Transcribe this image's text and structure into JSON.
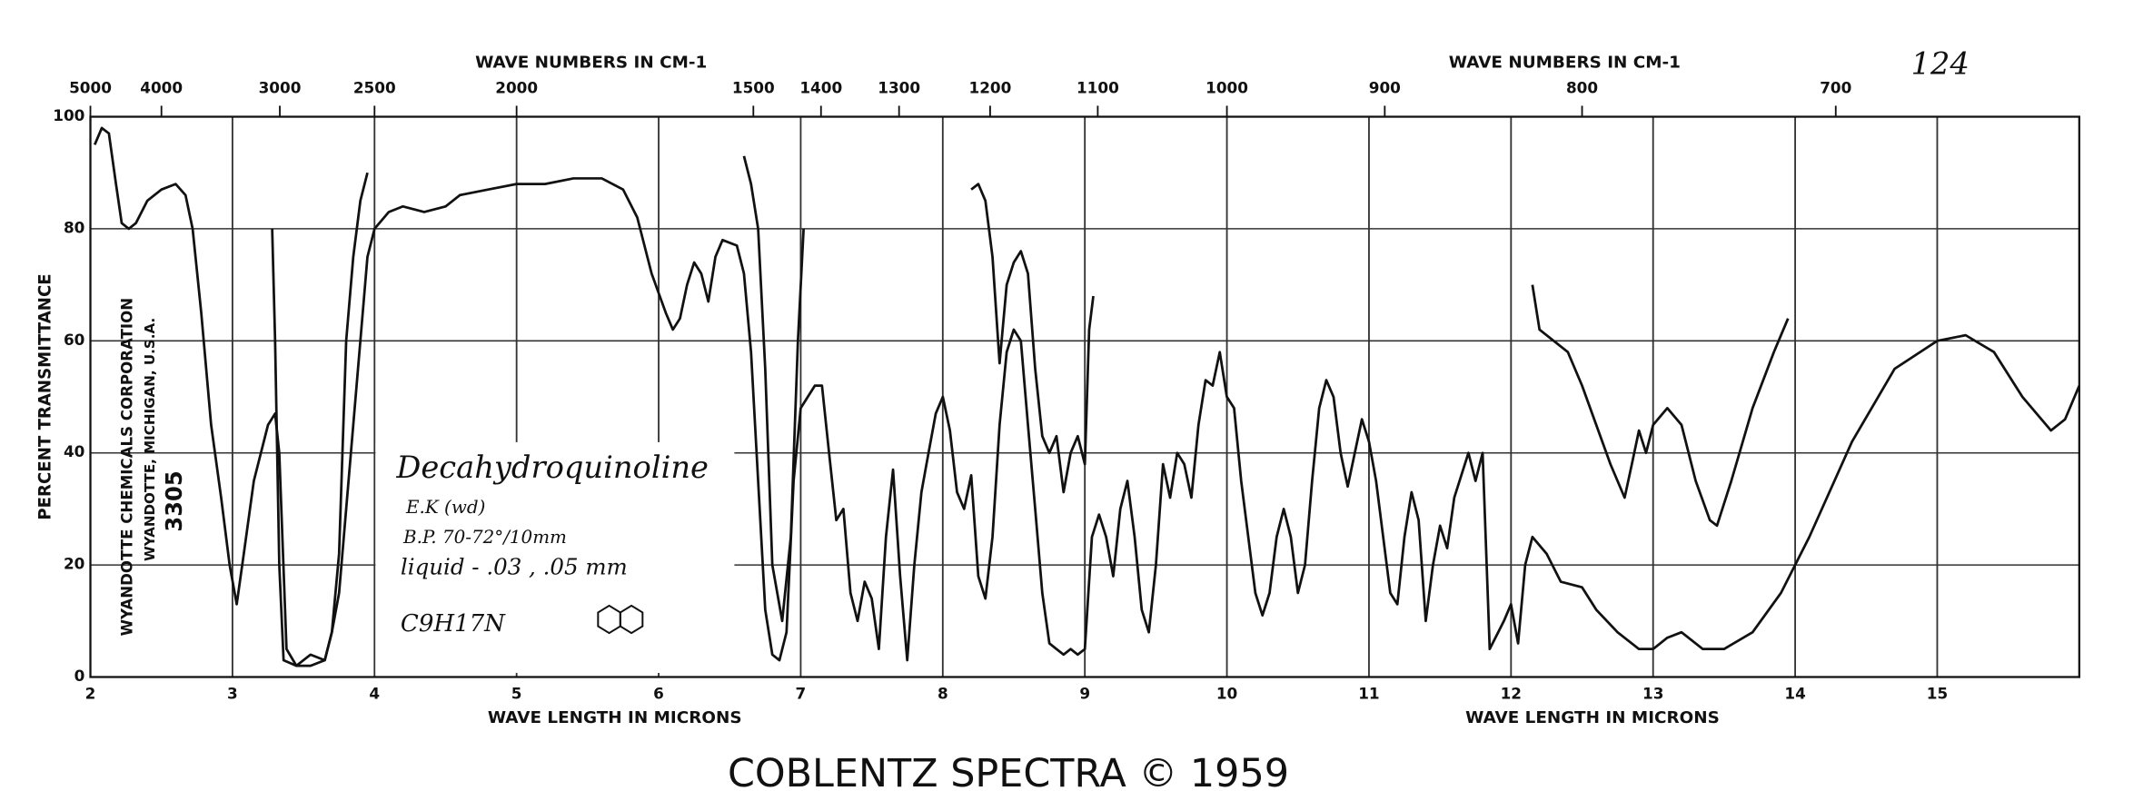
{
  "chart_data": {
    "type": "line",
    "page_number": "124",
    "x2label": "WAVE NUMBERS IN CM-1",
    "xlabel": "WAVE LENGTH IN MICRONS",
    "ylabel": "PERCENT TRANSMITTANCE",
    "xlim": [
      2,
      16
    ],
    "xticks": [
      2,
      3,
      4,
      5,
      6,
      7,
      8,
      9,
      10,
      11,
      12,
      13,
      14,
      15
    ],
    "x2ticks": [
      5000,
      4000,
      3000,
      2500,
      2000,
      1500,
      1400,
      1300,
      1200,
      1100,
      1000,
      900,
      800,
      700
    ],
    "ylim": [
      0,
      100
    ],
    "yticks": [
      0,
      20,
      40,
      60,
      80,
      100
    ],
    "grid": true,
    "note": [
      "Decahydroquinoline",
      "E.K (wd)",
      "B.P. 70-72°/10mm",
      "liquid - .03 , .05 mm",
      "C9H17N"
    ],
    "stamp": [
      "WYANDOTTE CHEMICALS CORPORATION",
      "WYANDOTTE, MICHIGAN, U.S.A.",
      "3305"
    ],
    "series": [
      {
        "color": "#111111",
        "x": [
          2.03,
          2.08,
          2.13,
          2.18,
          2.22,
          2.27,
          2.32,
          2.4,
          2.5,
          2.6,
          2.67,
          2.72,
          2.78,
          2.85,
          2.92,
          2.98,
          3.03,
          3.08,
          3.15,
          3.25,
          3.3,
          3.33,
          3.38,
          3.45,
          3.55,
          3.65,
          3.7,
          3.75,
          3.8,
          3.85,
          3.9,
          3.95,
          4.0,
          4.1,
          4.2,
          4.35,
          4.5,
          4.6,
          4.8,
          5.0,
          5.2,
          5.4,
          5.6,
          5.75,
          5.85,
          5.95,
          6.05,
          6.1,
          6.15,
          6.2,
          6.25,
          6.3,
          6.35,
          6.4,
          6.45,
          6.55,
          6.6,
          6.65,
          6.7,
          6.75,
          6.8,
          6.85,
          6.9,
          6.95,
          7.0,
          7.1,
          7.15,
          7.2,
          7.25,
          7.3,
          7.35,
          7.4,
          7.45,
          7.5,
          7.55,
          7.6,
          7.65,
          7.7,
          7.75,
          7.8,
          7.85,
          7.9,
          7.95,
          8.0,
          8.05,
          8.1,
          8.15,
          8.2,
          8.25,
          8.3,
          8.35,
          8.4,
          8.45,
          8.5,
          8.55,
          8.6,
          8.65,
          8.7,
          8.75,
          8.8,
          8.85,
          8.9,
          8.95,
          9.0,
          9.05,
          9.1,
          9.15,
          9.2,
          9.25,
          9.3,
          9.35,
          9.4,
          9.45,
          9.5,
          9.55,
          9.6,
          9.65,
          9.7,
          9.75,
          9.8,
          9.85,
          9.9,
          9.95,
          10.0,
          10.05,
          10.1,
          10.15,
          10.2,
          10.25,
          10.3,
          10.35,
          10.4,
          10.45,
          10.5,
          10.55,
          10.6,
          10.65,
          10.7,
          10.75,
          10.8,
          10.85,
          10.9,
          10.95,
          11.0,
          11.05,
          11.1,
          11.15,
          11.2,
          11.25,
          11.3,
          11.35,
          11.4,
          11.45,
          11.5,
          11.55,
          11.6,
          11.7,
          11.75,
          11.8,
          11.85,
          11.95,
          12.0,
          12.05,
          12.1,
          12.15,
          12.25,
          12.35,
          12.5,
          12.6,
          12.75,
          12.9,
          13.0,
          13.1,
          13.2,
          13.35,
          13.5,
          13.7,
          13.9,
          14.1,
          14.4,
          14.7,
          15.0,
          15.2,
          15.4,
          15.6,
          15.8,
          15.9,
          16.0
        ],
        "values": [
          95,
          98,
          97,
          88,
          81,
          80,
          81,
          85,
          87,
          88,
          86,
          80,
          65,
          45,
          32,
          20,
          13,
          22,
          35,
          45,
          47,
          40,
          5,
          2,
          2,
          3,
          8,
          15,
          30,
          45,
          60,
          75,
          80,
          83,
          84,
          83,
          84,
          86,
          87,
          88,
          88,
          89,
          89,
          87,
          82,
          72,
          65,
          62,
          64,
          70,
          74,
          72,
          67,
          75,
          78,
          77,
          72,
          58,
          35,
          12,
          4,
          3,
          8,
          35,
          48,
          52,
          52,
          40,
          28,
          30,
          15,
          10,
          17,
          14,
          5,
          25,
          37,
          18,
          3,
          20,
          33,
          40,
          47,
          50,
          44,
          33,
          30,
          36,
          18,
          14,
          25,
          45,
          58,
          62,
          60,
          45,
          30,
          15,
          6,
          5,
          4,
          5,
          4,
          5,
          25,
          29,
          25,
          18,
          30,
          35,
          25,
          12,
          8,
          20,
          38,
          32,
          40,
          38,
          32,
          45,
          53,
          52,
          58,
          50,
          48,
          35,
          25,
          15,
          11,
          15,
          25,
          30,
          25,
          15,
          20,
          35,
          48,
          53,
          50,
          40,
          34,
          40,
          46,
          42,
          35,
          25,
          15,
          13,
          25,
          33,
          28,
          10,
          20,
          27,
          23,
          32,
          40,
          35,
          40,
          5,
          10,
          13,
          6,
          20,
          25,
          22,
          17,
          16,
          12,
          8,
          5,
          5,
          7,
          8,
          5,
          5,
          8,
          15,
          25,
          42,
          55,
          60,
          61,
          58,
          50,
          44,
          46,
          52
        ]
      },
      {
        "color": "#111111",
        "x": [
          3.28,
          3.3,
          3.33,
          3.36,
          3.45,
          3.55,
          3.65,
          3.7,
          3.75,
          3.8,
          3.85,
          3.9,
          3.95,
          5.0,
          6.6,
          6.65,
          6.7,
          6.75,
          6.8,
          6.87,
          6.93,
          6.98,
          7.02,
          8.0,
          8.2,
          8.25,
          8.3,
          8.35,
          8.4,
          8.45,
          8.5,
          8.55,
          8.6,
          8.65,
          8.7,
          8.75,
          8.8,
          8.85,
          8.9,
          8.95,
          9.0,
          9.03,
          9.06,
          11.0,
          12.15,
          12.2,
          12.3,
          12.4,
          12.5,
          12.6,
          12.7,
          12.8,
          12.85,
          12.9,
          12.95,
          13.0,
          13.1,
          13.2,
          13.3,
          13.4,
          13.45,
          13.55,
          13.7,
          13.85,
          13.95
        ],
        "values": [
          80,
          60,
          20,
          3,
          2,
          4,
          3,
          8,
          22,
          60,
          75,
          85,
          90,
          null,
          93,
          88,
          80,
          55,
          20,
          10,
          25,
          60,
          80,
          null,
          87,
          88,
          85,
          75,
          56,
          70,
          74,
          76,
          72,
          55,
          43,
          40,
          43,
          33,
          40,
          43,
          38,
          62,
          68,
          null,
          70,
          62,
          60,
          58,
          52,
          45,
          38,
          32,
          38,
          44,
          40,
          45,
          48,
          45,
          35,
          28,
          27,
          35,
          48,
          58,
          64
        ]
      }
    ]
  },
  "footer": "COBLENTZ SPECTRA © 1959"
}
